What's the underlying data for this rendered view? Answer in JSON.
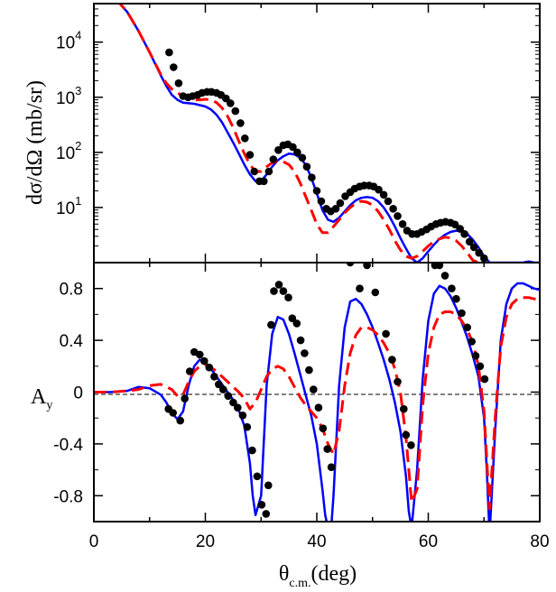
{
  "chart_data": [
    {
      "panel": "top",
      "type": "line",
      "yscale": "log",
      "title": "",
      "ylabel": "dσ/dΩ (mb/sr)",
      "xlabel": "",
      "xlim": [
        0,
        80
      ],
      "ylim": [
        1.0,
        50000
      ],
      "yticks": [
        {
          "value": 10,
          "base": "10",
          "exp": "1"
        },
        {
          "value": 100,
          "base": "10",
          "exp": "2"
        },
        {
          "value": 1000,
          "base": "10",
          "exp": "3"
        },
        {
          "value": 10000,
          "base": "10",
          "exp": "4"
        }
      ],
      "series": [
        {
          "name": "data",
          "kind": "points",
          "color": "#000000",
          "x": [
            13.5,
            14.3,
            15.2,
            16.0,
            16.9,
            17.7,
            18.6,
            19.4,
            20.3,
            21.1,
            22.0,
            22.8,
            23.7,
            24.5,
            25.4,
            26.3,
            27.1,
            28.0,
            28.8,
            29.7,
            30.5,
            31.4,
            32.2,
            33.1,
            34.0,
            34.8,
            35.7,
            36.5,
            37.4,
            38.2,
            39.1,
            40.0,
            40.8,
            41.7,
            42.5,
            43.4,
            44.2,
            45.1,
            46.0,
            46.8,
            47.7,
            48.5,
            49.4,
            50.2,
            51.1,
            52.0,
            52.8,
            53.7,
            54.5,
            55.4,
            56.2,
            57.1,
            58.0,
            58.8,
            59.7,
            60.5,
            61.4,
            62.2,
            63.1,
            64.0,
            64.8,
            65.7,
            66.5,
            67.4,
            68.2,
            69.1,
            70.0
          ],
          "y": [
            6500,
            3500,
            1800,
            1050,
            1000,
            1050,
            1100,
            1200,
            1250,
            1250,
            1200,
            1100,
            950,
            780,
            560,
            340,
            180,
            90,
            45,
            30,
            30,
            45,
            75,
            110,
            135,
            140,
            125,
            100,
            80,
            55,
            35,
            20,
            13,
            9.5,
            8.5,
            9.5,
            12,
            16,
            19,
            22,
            24,
            25,
            25,
            24,
            21,
            17,
            13,
            9.5,
            7,
            5,
            3.8,
            3.3,
            3.3,
            3.6,
            4.0,
            4.5,
            5.0,
            5.3,
            5.5,
            5.3,
            4.9,
            4.1,
            3.3,
            2.4,
            1.9,
            1.5,
            1.2
          ]
        },
        {
          "name": "blue calculation",
          "kind": "solid",
          "color": "#0000ff",
          "x": [
            4,
            6,
            8,
            10,
            12,
            13,
            14,
            15,
            16,
            17,
            18,
            19,
            20,
            21,
            22,
            23,
            24,
            25,
            26,
            27,
            28,
            29,
            30,
            31,
            32,
            33,
            34,
            35,
            36,
            37,
            38,
            39,
            40,
            41,
            42,
            43,
            44,
            45,
            46,
            47,
            48,
            49,
            50,
            51,
            52,
            53,
            54,
            55,
            56,
            57,
            58,
            59,
            60,
            61,
            62,
            63,
            64,
            65,
            66,
            67,
            68,
            69,
            70,
            71,
            72,
            73,
            74,
            75,
            76,
            77,
            78,
            79,
            80
          ],
          "y": [
            60000,
            35000,
            16000,
            6500,
            2500,
            1600,
            1100,
            900,
            800,
            780,
            760,
            720,
            680,
            600,
            480,
            350,
            230,
            150,
            95,
            60,
            40,
            30,
            30,
            40,
            55,
            72,
            85,
            95,
            92,
            80,
            60,
            35,
            18,
            9,
            6,
            5.5,
            6.5,
            8.5,
            11,
            13.5,
            15,
            15.5,
            15,
            13,
            10,
            7,
            4.5,
            2.8,
            1.8,
            1.2,
            1.0,
            1.2,
            1.6,
            2.1,
            2.7,
            3.2,
            3.6,
            3.8,
            3.7,
            3.3,
            2.6,
            1.9,
            1.3,
            1.0,
            1.0,
            1.0,
            1.0,
            1.0,
            1.0,
            1.0,
            1.05,
            1.0,
            1.0
          ]
        },
        {
          "name": "red dashed calculation",
          "kind": "dashed",
          "color": "#ff0000",
          "x": [
            4,
            6,
            8,
            10,
            12,
            13,
            14,
            15,
            16,
            17,
            18,
            19,
            20,
            21,
            22,
            23,
            24,
            25,
            26,
            27,
            28,
            29,
            30,
            31,
            32,
            33,
            34,
            35,
            36,
            37,
            38,
            39,
            40,
            41,
            42,
            43,
            44,
            45,
            46,
            47,
            48,
            49,
            50,
            51,
            52,
            53,
            54,
            55,
            56,
            57,
            58,
            59,
            60,
            61,
            62,
            63,
            64,
            65,
            66,
            67,
            68,
            69,
            70
          ],
          "y": [
            60000,
            35000,
            16000,
            6500,
            2600,
            1800,
            1400,
            1200,
            1050,
            950,
            900,
            900,
            920,
            900,
            800,
            640,
            450,
            280,
            160,
            95,
            60,
            45,
            45,
            55,
            65,
            70,
            68,
            60,
            45,
            28,
            16,
            9,
            5,
            3.5,
            3.5,
            4.5,
            6,
            8,
            10,
            12,
            13,
            12.5,
            11,
            8.5,
            6,
            4,
            2.5,
            1.7,
            1.3,
            1.2,
            1.3,
            1.6,
            2.0,
            2.4,
            2.7,
            2.9,
            2.8,
            2.5,
            2.0,
            1.5,
            1.1,
            1.0,
            1.0
          ]
        }
      ]
    },
    {
      "panel": "bottom",
      "type": "line",
      "title": "",
      "ylabel": "A",
      "ylabel_sub": "y",
      "xlabel": "θ",
      "xlabel_sub": "c.m.",
      "xlabel_unit": "(deg)",
      "xlim": [
        0,
        80
      ],
      "ylim": [
        -1.0,
        1.0
      ],
      "xticks": [
        "0",
        "20",
        "40",
        "60",
        "80"
      ],
      "yticks": [
        "-0.8",
        "-0.4",
        "0",
        "0.4",
        "0.8"
      ],
      "zero_line": true,
      "series": [
        {
          "name": "data",
          "kind": "points",
          "color": "#000000",
          "x": [
            13.4,
            14.2,
            15.5,
            16.3,
            17.2,
            18.0,
            19.0,
            19.8,
            20.7,
            21.6,
            22.4,
            23.2,
            24.1,
            25.0,
            25.8,
            26.7,
            27.5,
            28.4,
            29.3,
            30.1,
            30.9,
            31.3,
            31.8,
            32.3,
            33.2,
            34.0,
            34.9,
            35.6,
            36.4,
            37.1,
            37.8,
            38.6,
            39.4,
            40.3,
            41.1,
            41.9,
            42.6,
            46.0,
            47.7,
            49.0,
            50.5,
            52.4,
            53.5,
            54.5,
            55.6,
            56.0,
            56.9,
            61.2,
            62.0,
            63.0,
            64.2,
            65.0,
            66.0,
            67.0,
            67.8,
            68.5,
            69.3,
            70.1
          ],
          "y": [
            -0.13,
            -0.16,
            -0.22,
            -0.05,
            0.16,
            0.31,
            0.29,
            0.24,
            0.19,
            0.12,
            0.06,
            0.02,
            -0.03,
            -0.08,
            -0.12,
            -0.18,
            -0.27,
            -0.45,
            -0.65,
            -0.87,
            -0.94,
            -0.72,
            0.52,
            0.78,
            0.83,
            0.78,
            0.73,
            0.57,
            0.53,
            0.4,
            0.3,
            0.17,
            0.02,
            -0.12,
            -0.28,
            -0.44,
            -0.58,
            1.0,
            0.8,
            0.98,
            0.77,
            0.45,
            0.25,
            0.08,
            -0.13,
            -0.33,
            -0.41,
            0.98,
            0.98,
            0.9,
            0.8,
            0.72,
            0.61,
            0.5,
            0.39,
            0.28,
            0.2,
            0.1
          ]
        },
        {
          "name": "blue calculation",
          "kind": "solid",
          "color": "#0000ff",
          "x": [
            0,
            3,
            6,
            8,
            10,
            12,
            13,
            14,
            15,
            16,
            17,
            18,
            19,
            20,
            21,
            22,
            23,
            24,
            25,
            26,
            27,
            28,
            28.5,
            29,
            30,
            31,
            32,
            33,
            34,
            35,
            36,
            37,
            38,
            39,
            40,
            41,
            41.5,
            42,
            42.5,
            43,
            44,
            45,
            46,
            47,
            48,
            49,
            50,
            51,
            52,
            53,
            54,
            55,
            56,
            56.5,
            57,
            58,
            59,
            60,
            61,
            62,
            63,
            64,
            65,
            66,
            67,
            68,
            69,
            70,
            70.5,
            71,
            72,
            73,
            74,
            75,
            76,
            77,
            78,
            79,
            80
          ],
          "y": [
            0,
            0,
            0.01,
            0.04,
            0.03,
            -0.02,
            -0.08,
            -0.16,
            -0.21,
            -0.15,
            0.05,
            0.2,
            0.25,
            0.23,
            0.18,
            0.12,
            0.06,
            0.0,
            -0.06,
            -0.14,
            -0.26,
            -0.55,
            -0.8,
            -0.95,
            -0.8,
            0.05,
            0.45,
            0.58,
            0.56,
            0.45,
            0.3,
            0.14,
            -0.02,
            -0.18,
            -0.4,
            -0.75,
            -0.95,
            -1.05,
            -1.1,
            -0.8,
            0.05,
            0.5,
            0.7,
            0.72,
            0.68,
            0.6,
            0.5,
            0.38,
            0.25,
            0.1,
            -0.08,
            -0.3,
            -0.65,
            -0.92,
            -1.05,
            -0.6,
            0.1,
            0.55,
            0.76,
            0.82,
            0.8,
            0.74,
            0.65,
            0.54,
            0.42,
            0.28,
            0.12,
            -0.2,
            -0.6,
            -1.1,
            -0.3,
            0.4,
            0.68,
            0.8,
            0.84,
            0.84,
            0.82,
            0.8,
            0.79
          ]
        },
        {
          "name": "red dashed calculation",
          "kind": "dashed",
          "color": "#ff0000",
          "x": [
            0,
            3,
            6,
            8,
            10,
            12,
            14,
            15,
            16,
            17,
            18,
            19,
            20,
            21,
            22,
            23,
            24,
            25,
            26,
            27,
            28,
            29,
            30,
            31,
            32,
            33,
            34,
            35,
            36,
            37,
            38,
            39,
            40,
            41,
            42,
            43,
            44,
            45,
            46,
            47,
            48,
            49,
            50,
            51,
            52,
            53,
            54,
            55,
            56,
            57,
            58,
            59,
            60,
            61,
            62,
            63,
            64,
            65,
            66,
            67,
            68,
            69,
            70,
            71,
            72,
            73,
            74,
            75,
            76,
            77,
            78,
            79,
            80
          ],
          "y": [
            0,
            0,
            0.01,
            0.02,
            0.05,
            0.06,
            0.02,
            -0.03,
            -0.02,
            0.08,
            0.16,
            0.2,
            0.21,
            0.19,
            0.16,
            0.12,
            0.08,
            0.04,
            0.0,
            -0.05,
            -0.13,
            -0.08,
            0.02,
            0.12,
            0.18,
            0.2,
            0.18,
            0.12,
            0.04,
            -0.04,
            -0.1,
            -0.15,
            -0.2,
            -0.28,
            -0.4,
            -0.48,
            -0.3,
            0.05,
            0.3,
            0.44,
            0.5,
            0.5,
            0.48,
            0.44,
            0.38,
            0.3,
            0.18,
            0.0,
            -0.35,
            -0.85,
            -0.75,
            -0.1,
            0.3,
            0.5,
            0.6,
            0.62,
            0.62,
            0.6,
            0.55,
            0.48,
            0.38,
            0.2,
            -0.15,
            -0.9,
            -0.2,
            0.35,
            0.58,
            0.68,
            0.72,
            0.73,
            0.73,
            0.72,
            0.72
          ]
        }
      ]
    }
  ]
}
